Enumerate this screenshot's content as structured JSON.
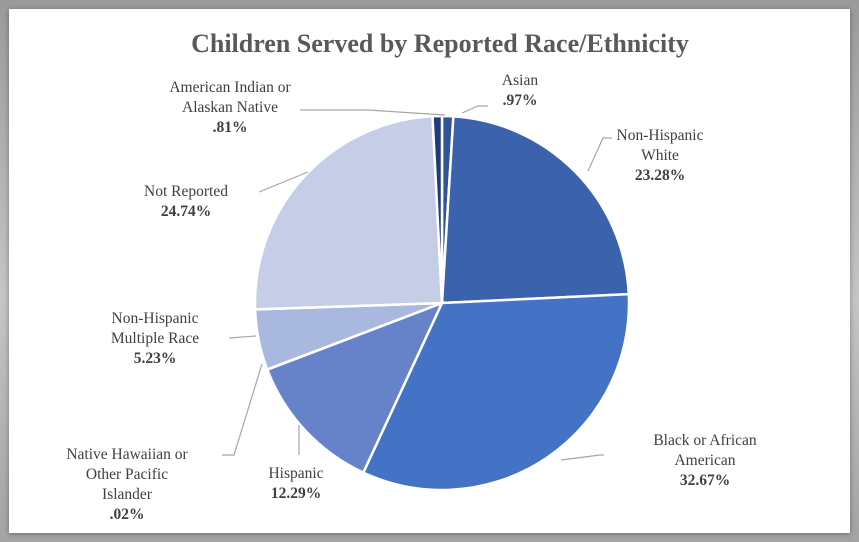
{
  "chart_data": {
    "type": "pie",
    "title": "Children Served by Reported Race/Ethnicity",
    "slices": [
      {
        "key": "asian",
        "label_lines": [
          "Asian"
        ],
        "value_label": ".97%",
        "value": 0.97,
        "color": "#2f5597"
      },
      {
        "key": "white",
        "label_lines": [
          "Non-Hispanic",
          "White"
        ],
        "value_label": "23.28%",
        "value": 23.28,
        "color": "#3a62ad"
      },
      {
        "key": "black",
        "label_lines": [
          "Black or African",
          "American"
        ],
        "value_label": "32.67%",
        "value": 32.67,
        "color": "#4472c4"
      },
      {
        "key": "hispanic",
        "label_lines": [
          "Hispanic"
        ],
        "value_label": "12.29%",
        "value": 12.29,
        "color": "#6683ca"
      },
      {
        "key": "nhpi",
        "label_lines": [
          "Native Hawaiian or",
          "Other Pacific",
          "Islander"
        ],
        "value_label": ".02%",
        "value": 0.02,
        "color": "#7f96d2"
      },
      {
        "key": "multiple",
        "label_lines": [
          "Non-Hispanic",
          "Multiple Race"
        ],
        "value_label": "5.23%",
        "value": 5.23,
        "color": "#a9b8de"
      },
      {
        "key": "not_reported",
        "label_lines": [
          "Not Reported"
        ],
        "value_label": "24.74%",
        "value": 24.74,
        "color": "#c5cee6"
      },
      {
        "key": "aian",
        "label_lines": [
          "American Indian or",
          "Alaskan Native"
        ],
        "value_label": ".81%",
        "value": 0.81,
        "color": "#1f3d7a"
      }
    ]
  }
}
